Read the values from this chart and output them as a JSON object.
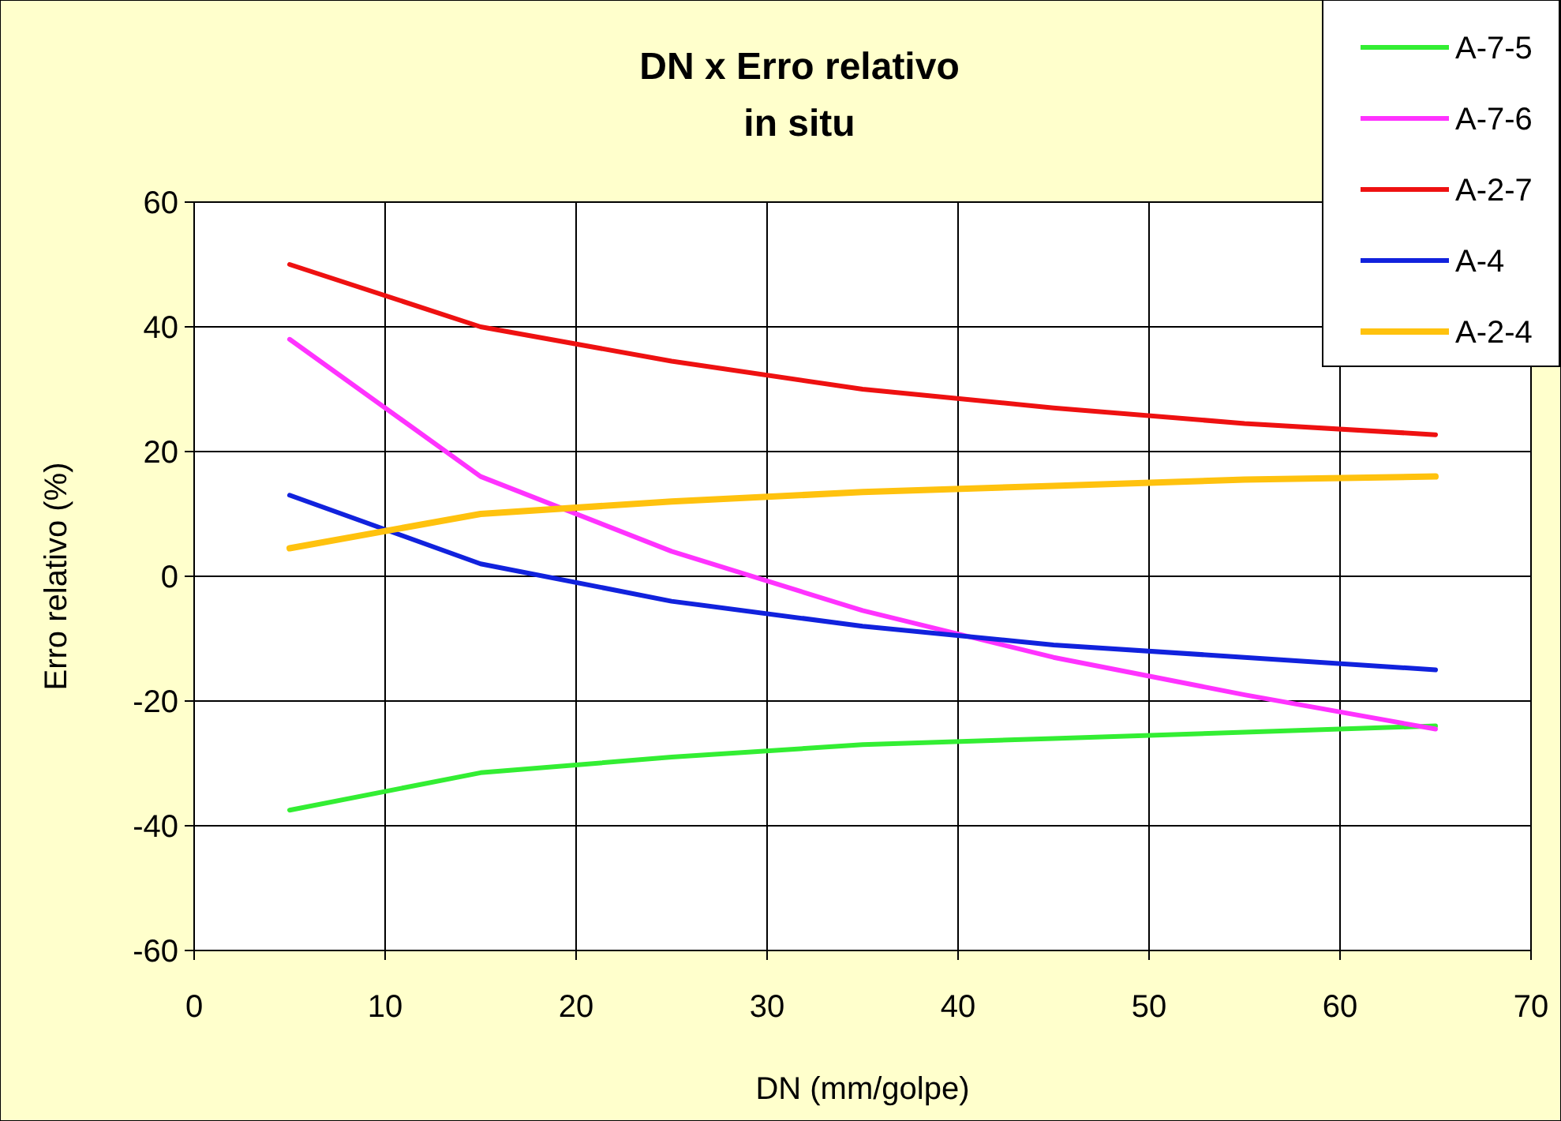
{
  "chart_data": {
    "type": "line",
    "title": "DN x Erro relativo\nin situ",
    "xlabel": "DN (mm/golpe)",
    "ylabel": "Erro relativo (%)",
    "x": [
      5,
      15,
      25,
      35,
      45,
      55,
      65
    ],
    "series": [
      {
        "name": "A-7-5",
        "color": "#33ee33",
        "values": [
          -37.5,
          -31.5,
          -29,
          -27,
          -26,
          -25,
          -24
        ]
      },
      {
        "name": "A-7-6",
        "color": "#ff33ff",
        "values": [
          38,
          16,
          4,
          -5.5,
          -13,
          -19,
          -24.5
        ]
      },
      {
        "name": "A-2-7",
        "color": "#ee1111",
        "values": [
          50,
          40,
          34.5,
          30,
          27,
          24.5,
          22.7
        ]
      },
      {
        "name": "A-4",
        "color": "#1122dd",
        "values": [
          13,
          2,
          -4,
          -8,
          -11,
          -13,
          -15
        ]
      },
      {
        "name": "A-2-4",
        "color": "#ffc20e",
        "values": [
          4.5,
          10,
          12,
          13.5,
          14.5,
          15.5,
          16
        ]
      }
    ],
    "xlim": [
      0,
      70
    ],
    "xticks": [
      0,
      10,
      20,
      30,
      40,
      50,
      60,
      70
    ],
    "ylim": [
      -60,
      60
    ],
    "yticks": [
      -60,
      -40,
      -20,
      0,
      20,
      40,
      60
    ],
    "grid": true,
    "legend": "top right"
  }
}
